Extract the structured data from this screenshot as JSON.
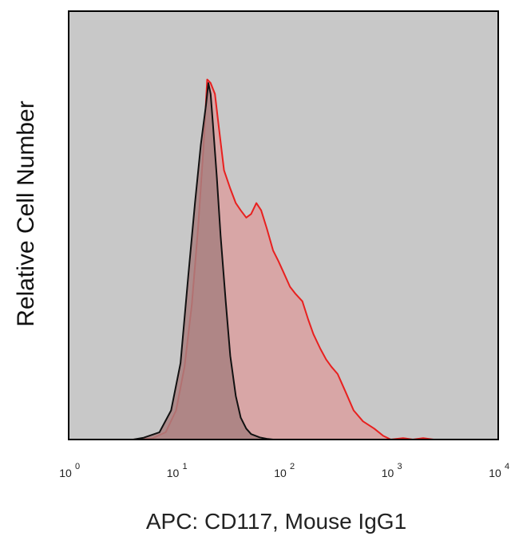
{
  "chart_data": {
    "type": "area",
    "title": "",
    "xlabel": "APC: CD117, Mouse IgG1",
    "ylabel": "Relative Cell Number",
    "x_scale": "log",
    "xlim": [
      1,
      10000
    ],
    "ylim": [
      0,
      100
    ],
    "grid": false,
    "legend": "none",
    "x_ticks": [
      {
        "base": "10",
        "exp": "0"
      },
      {
        "base": "10",
        "exp": "1"
      },
      {
        "base": "10",
        "exp": "2"
      },
      {
        "base": "10",
        "exp": "3"
      },
      {
        "base": "10",
        "exp": "4"
      }
    ],
    "series": [
      {
        "color": "#e8201f",
        "fill": "#d9a2a2",
        "x": [
          1,
          4,
          6,
          8,
          10,
          12,
          14,
          16,
          18,
          19.5,
          21,
          23,
          25,
          28,
          32,
          36,
          40,
          45,
          50,
          56,
          62,
          70,
          80,
          90,
          100,
          115,
          130,
          150,
          170,
          190,
          220,
          250,
          280,
          320,
          380,
          450,
          550,
          700,
          850,
          1000,
          1300,
          1600,
          2000,
          2500,
          10000
        ],
        "y": [
          0,
          0,
          0.3,
          2,
          8,
          20,
          37,
          58,
          80,
          99,
          98,
          95,
          86,
          74,
          69,
          65,
          63,
          61,
          62,
          65,
          63,
          58,
          52,
          49,
          46,
          42,
          40,
          38,
          33,
          29,
          25,
          22,
          20,
          18,
          13,
          8,
          5,
          3,
          1,
          0,
          0.4,
          0,
          0.4,
          0,
          0
        ]
      },
      {
        "color": "#111111",
        "fill": "#a88080",
        "x": [
          1,
          4,
          5,
          7,
          9,
          11,
          13,
          15,
          17,
          19,
          20,
          21,
          22,
          24,
          26,
          29,
          32,
          36,
          40,
          45,
          50,
          60,
          70,
          80,
          10000
        ],
        "y": [
          0,
          0,
          0.5,
          2,
          8,
          21,
          45,
          65,
          81,
          92,
          98,
          95,
          87,
          72,
          56,
          38,
          23,
          12,
          6,
          3,
          1.5,
          0.6,
          0.2,
          0,
          0
        ]
      }
    ]
  }
}
